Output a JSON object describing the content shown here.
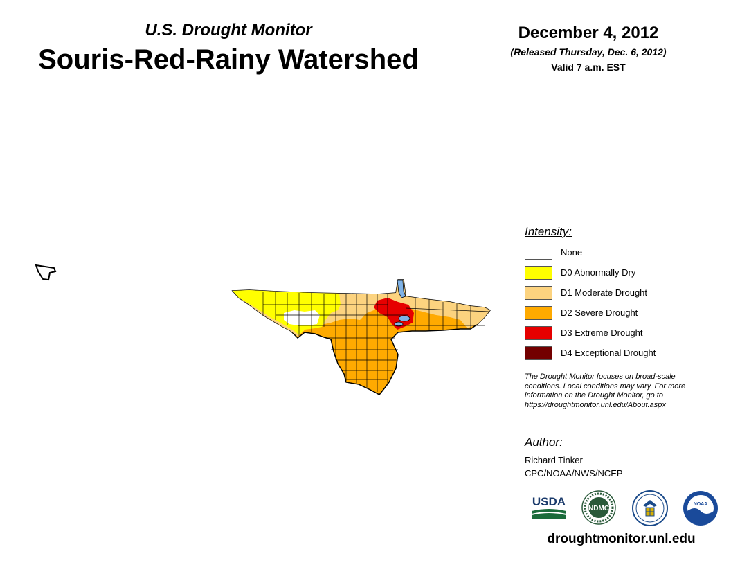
{
  "header": {
    "subtitle": "U.S. Drought Monitor",
    "title": "Souris-Red-Rainy Watershed",
    "date": "December 4, 2012",
    "released": "(Released Thursday, Dec. 6, 2012)",
    "valid": "Valid 7 a.m. EST"
  },
  "legend": {
    "heading": "Intensity:",
    "items": [
      {
        "label": "None",
        "color": "#ffffff"
      },
      {
        "label": "D0 Abnormally Dry",
        "color": "#ffff00"
      },
      {
        "label": "D1 Moderate Drought",
        "color": "#fcd37f"
      },
      {
        "label": "D2 Severe Drought",
        "color": "#ffaa00"
      },
      {
        "label": "D3 Extreme Drought",
        "color": "#e60000"
      },
      {
        "label": "D4 Exceptional Drought",
        "color": "#730000"
      }
    ]
  },
  "note": {
    "line1": "The Drought Monitor focuses on broad-scale",
    "line2": "conditions. Local conditions may vary. For more",
    "line3": "information on the Drought Monitor, go to",
    "line4": "https://droughtmonitor.unl.edu/About.aspx"
  },
  "author": {
    "heading": "Author:",
    "name": "Richard Tinker",
    "org": "CPC/NOAA/NWS/NCEP"
  },
  "logos": {
    "usda": "USDA",
    "ndmc": "NDMC",
    "noaa": "NOAA"
  },
  "footer": {
    "website": "droughtmonitor.unl.edu"
  },
  "colors": {
    "water": "#7fb2e5",
    "border": "#000000"
  }
}
